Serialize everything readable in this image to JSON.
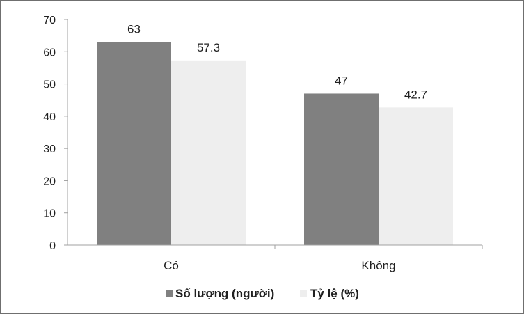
{
  "chart_data": {
    "type": "bar",
    "title": "",
    "xlabel": "",
    "ylabel": "",
    "categories": [
      "Có",
      "Không"
    ],
    "series": [
      {
        "name": "Số lượng (người)",
        "values": [
          63,
          47
        ],
        "color": "#808080"
      },
      {
        "name": "Tỷ lệ (%)",
        "values": [
          57.3,
          42.7
        ],
        "color": "#eeeeee"
      }
    ],
    "data_labels": [
      [
        "63",
        "47"
      ],
      [
        "57.3",
        "42.7"
      ]
    ],
    "ylim": [
      0,
      70
    ],
    "y_ticks": [
      0,
      10,
      20,
      30,
      40,
      50,
      60,
      70
    ],
    "grid": false,
    "legend_position": "bottom",
    "axis_color": "#a0a0a0"
  }
}
